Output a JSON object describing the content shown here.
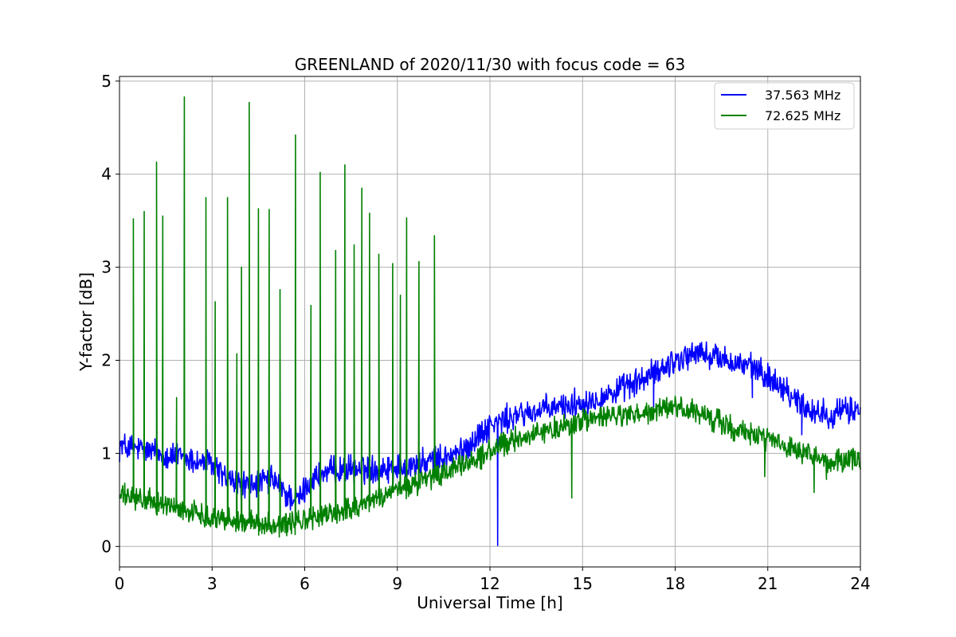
{
  "chart_data": {
    "type": "line",
    "title": "GREENLAND of 2020/11/30 with focus code = 63",
    "xlabel": "Universal Time [h]",
    "ylabel": "Y-factor [dB]",
    "xlim": [
      0,
      24
    ],
    "ylim": [
      -0.22,
      5.05
    ],
    "xticks": [
      0,
      3,
      6,
      9,
      12,
      15,
      18,
      21,
      24
    ],
    "yticks": [
      0,
      1,
      2,
      3,
      4,
      5
    ],
    "grid": true,
    "legend_position": "top-right",
    "series": [
      {
        "name": "37.563 MHz",
        "color": "#0000ff",
        "noise_amplitude": 0.12,
        "x": [
          0,
          1,
          2,
          3,
          3.5,
          4,
          5,
          5.4,
          5.8,
          6.2,
          7,
          8,
          9,
          10,
          11,
          11.5,
          12,
          13,
          14,
          15,
          16,
          17,
          18,
          18.7,
          19.5,
          20.5,
          21.5,
          22,
          22.5,
          23,
          24
        ],
        "y": [
          1.08,
          1.02,
          0.95,
          0.88,
          0.72,
          0.65,
          0.72,
          0.55,
          0.5,
          0.72,
          0.82,
          0.83,
          0.85,
          0.9,
          1.0,
          1.15,
          1.3,
          1.42,
          1.48,
          1.55,
          1.65,
          1.8,
          2.0,
          2.08,
          2.02,
          1.92,
          1.72,
          1.55,
          1.45,
          1.42,
          1.48
        ],
        "dips": [
          {
            "x": 12.25,
            "y": 0.01
          },
          {
            "x": 22.1,
            "y": 1.2
          },
          {
            "x": 20.5,
            "y": 1.6
          },
          {
            "x": 17.3,
            "y": 1.5
          }
        ]
      },
      {
        "name": "72.625 MHz",
        "color": "#008000",
        "noise_amplitude": 0.1,
        "x": [
          0,
          1,
          2,
          3,
          4,
          5,
          5.5,
          6,
          7,
          8,
          9,
          10,
          11,
          12,
          13,
          14,
          15,
          16,
          17,
          18,
          19,
          20,
          21,
          22,
          23,
          24
        ],
        "y": [
          0.55,
          0.48,
          0.4,
          0.32,
          0.26,
          0.24,
          0.24,
          0.28,
          0.36,
          0.47,
          0.6,
          0.72,
          0.85,
          1.02,
          1.18,
          1.25,
          1.35,
          1.4,
          1.42,
          1.5,
          1.4,
          1.25,
          1.15,
          1.0,
          0.9,
          0.95
        ],
        "spikes": [
          {
            "x": 0.45,
            "y": 3.52
          },
          {
            "x": 0.8,
            "y": 3.6
          },
          {
            "x": 1.2,
            "y": 4.13
          },
          {
            "x": 1.4,
            "y": 3.55
          },
          {
            "x": 1.85,
            "y": 1.6
          },
          {
            "x": 2.1,
            "y": 4.83
          },
          {
            "x": 2.8,
            "y": 3.75
          },
          {
            "x": 3.1,
            "y": 2.63
          },
          {
            "x": 3.5,
            "y": 3.75
          },
          {
            "x": 3.8,
            "y": 2.07
          },
          {
            "x": 3.95,
            "y": 3.0
          },
          {
            "x": 4.2,
            "y": 4.77
          },
          {
            "x": 4.5,
            "y": 3.63
          },
          {
            "x": 4.85,
            "y": 3.62
          },
          {
            "x": 5.2,
            "y": 2.76
          },
          {
            "x": 5.7,
            "y": 4.42
          },
          {
            "x": 6.2,
            "y": 2.59
          },
          {
            "x": 6.5,
            "y": 4.02
          },
          {
            "x": 7.0,
            "y": 3.18
          },
          {
            "x": 7.3,
            "y": 4.1
          },
          {
            "x": 7.6,
            "y": 3.24
          },
          {
            "x": 7.85,
            "y": 3.85
          },
          {
            "x": 8.1,
            "y": 3.58
          },
          {
            "x": 8.4,
            "y": 3.14
          },
          {
            "x": 8.85,
            "y": 3.04
          },
          {
            "x": 9.1,
            "y": 2.7
          },
          {
            "x": 9.3,
            "y": 3.53
          },
          {
            "x": 9.7,
            "y": 3.06
          },
          {
            "x": 10.2,
            "y": 3.34
          }
        ],
        "dips": [
          {
            "x": 14.65,
            "y": 0.52
          },
          {
            "x": 20.9,
            "y": 0.75
          },
          {
            "x": 22.5,
            "y": 0.58
          },
          {
            "x": 22.9,
            "y": 0.72
          }
        ]
      }
    ]
  }
}
